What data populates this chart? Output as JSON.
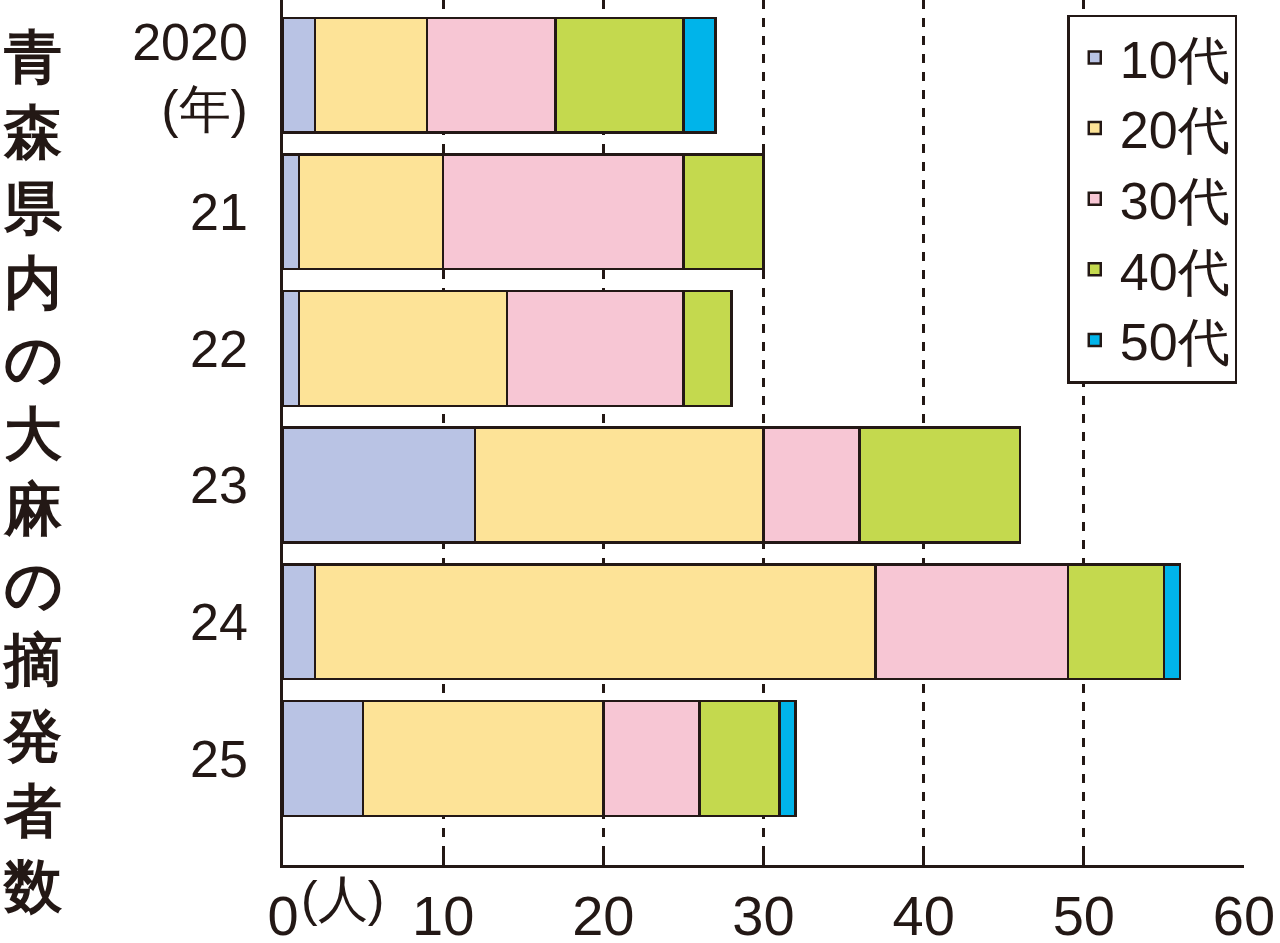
{
  "chart_data": {
    "type": "bar",
    "orientation": "horizontal",
    "stacked": true,
    "title": "青森県内の大麻の摘発者数",
    "xlabel": "(人)",
    "categories": [
      "2020\n(年)",
      "21",
      "22",
      "23",
      "24",
      "25"
    ],
    "series": [
      {
        "name": "10代",
        "color": "#b9c3e4",
        "values": [
          2,
          1,
          1,
          12,
          2,
          5
        ]
      },
      {
        "name": "20代",
        "color": "#fde397",
        "values": [
          7,
          9,
          13,
          18,
          35,
          15
        ]
      },
      {
        "name": "30代",
        "color": "#f7c6d4",
        "values": [
          8,
          15,
          11,
          6,
          12,
          6
        ]
      },
      {
        "name": "40代",
        "color": "#c4d94e",
        "values": [
          8,
          5,
          3,
          10,
          6,
          5
        ]
      },
      {
        "name": "50代",
        "color": "#00b4ea",
        "values": [
          2,
          null,
          null,
          null,
          1,
          1
        ]
      }
    ],
    "xlim": [
      0,
      60
    ],
    "xticks": [
      0,
      10,
      20,
      30,
      40,
      50,
      60
    ],
    "grid": "x",
    "legend": "top right"
  }
}
